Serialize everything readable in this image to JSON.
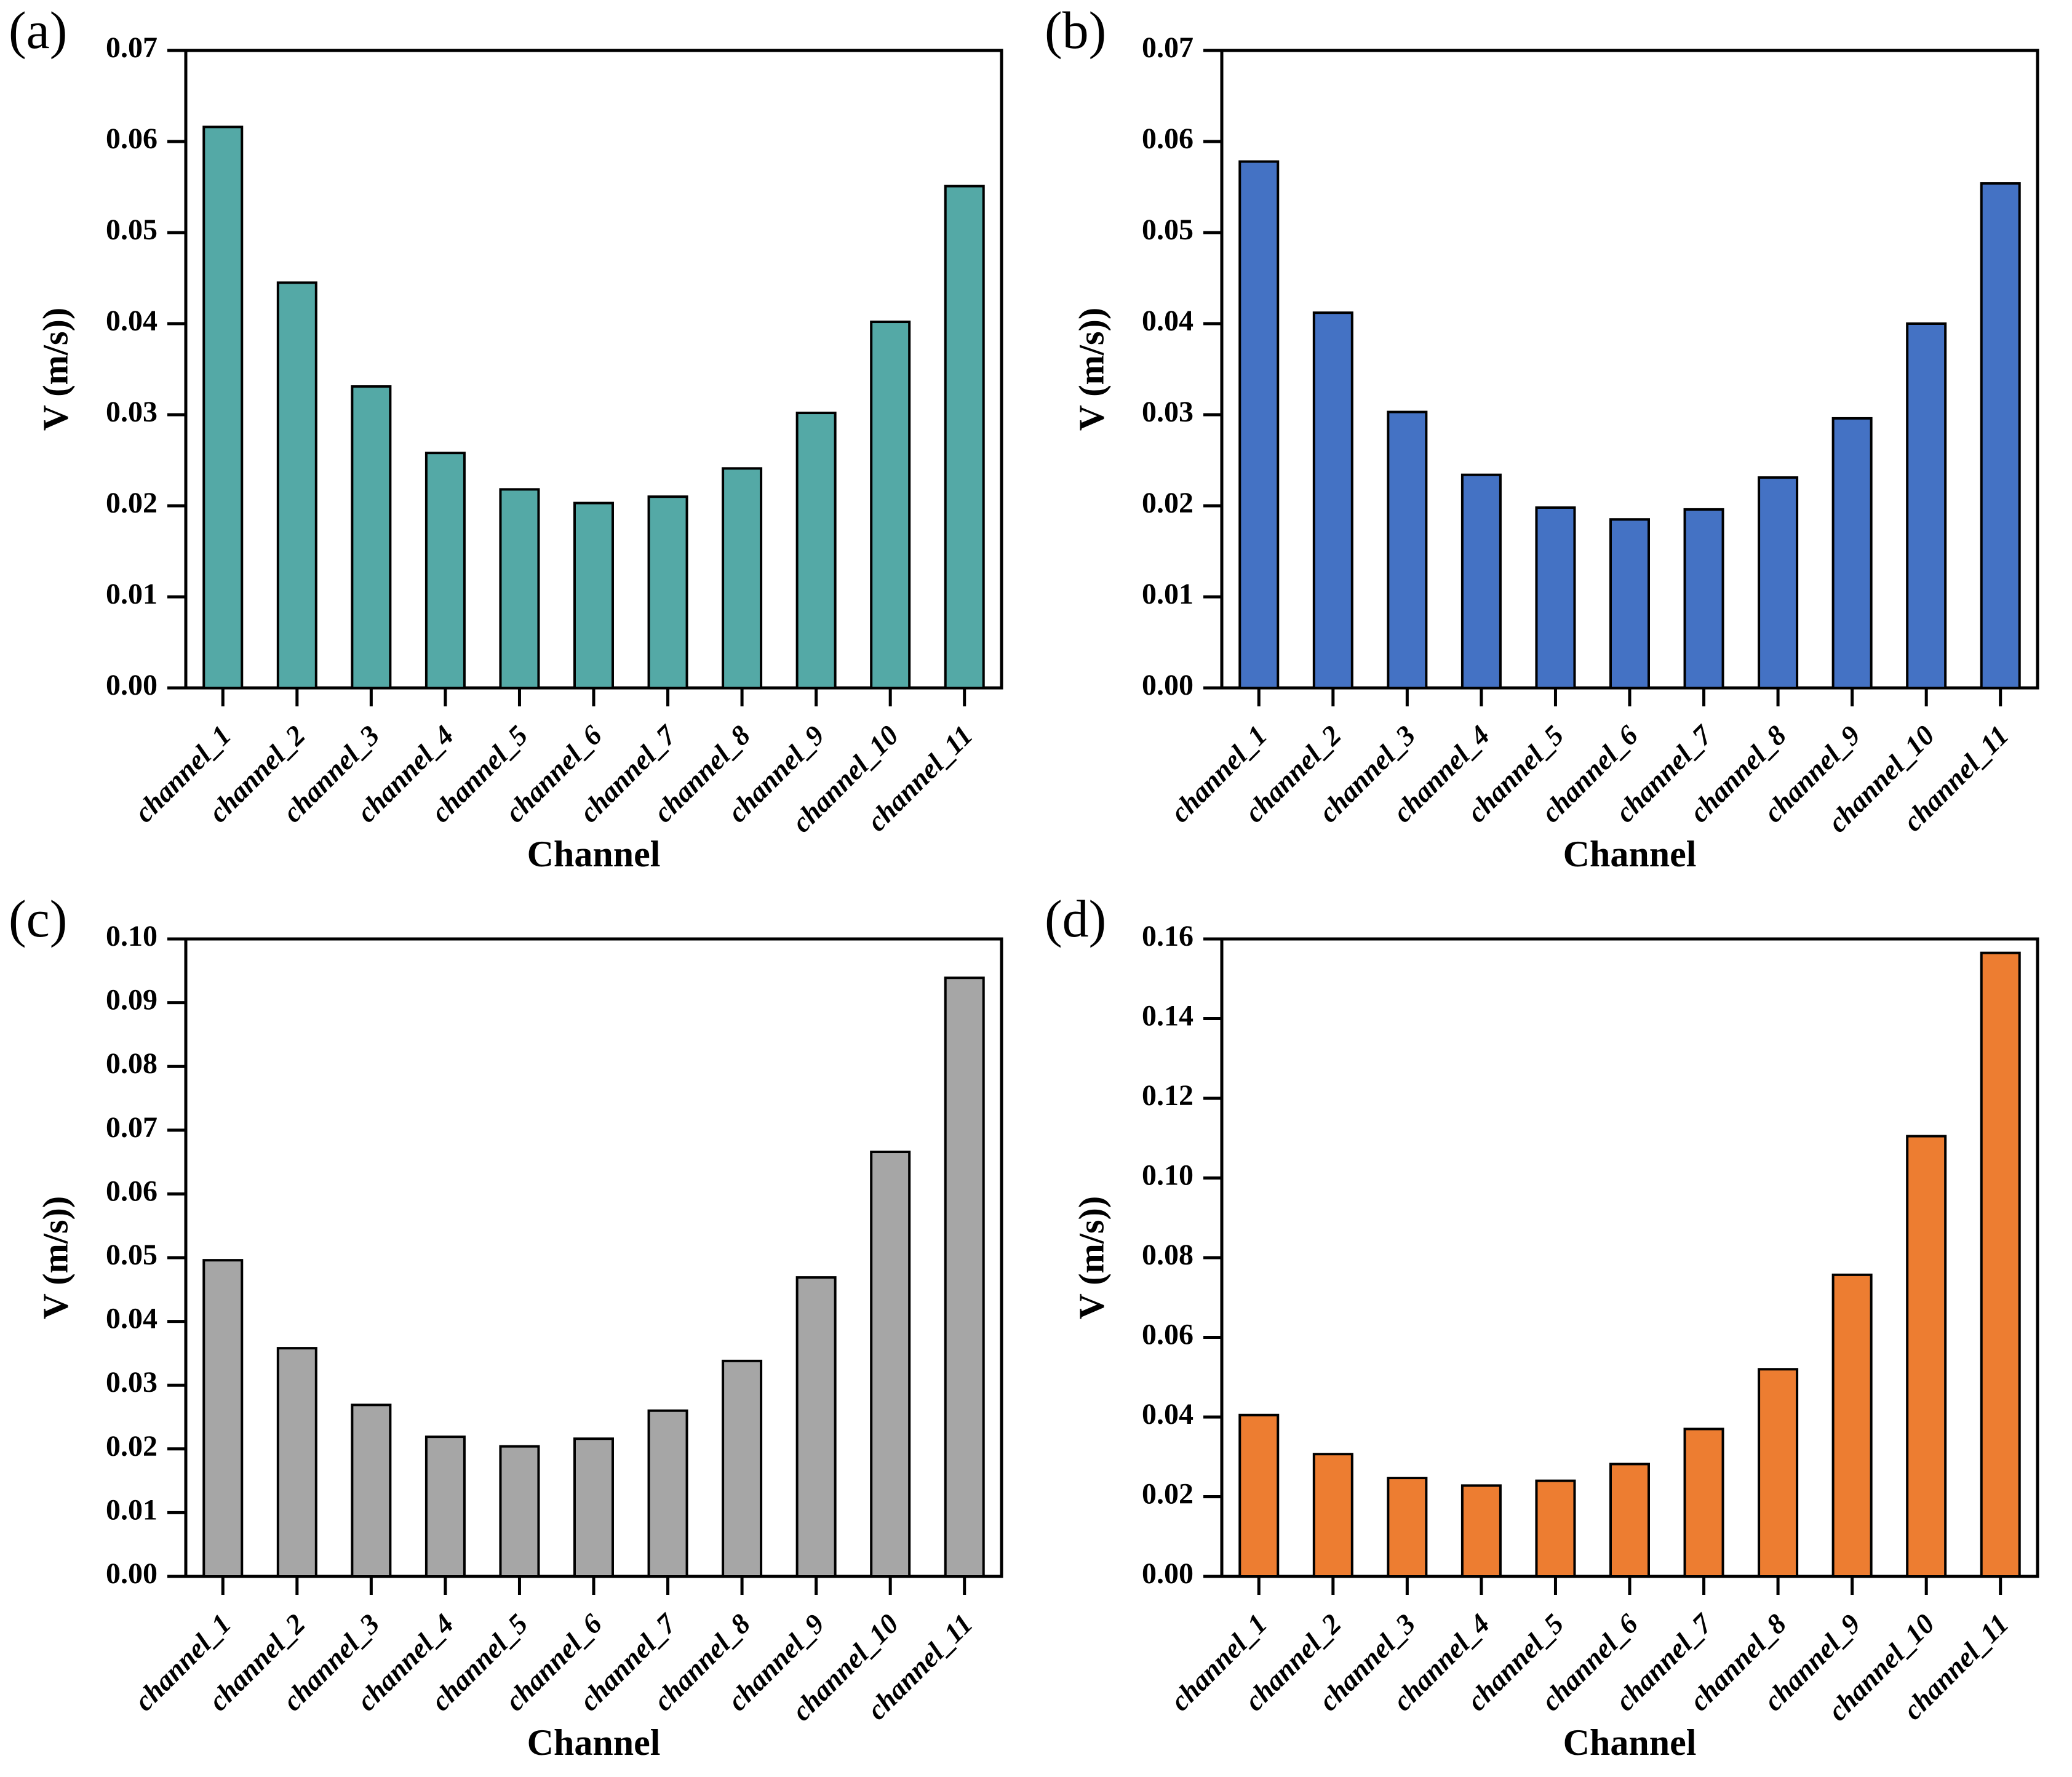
{
  "figure": {
    "background_color": "#ffffff",
    "layout": "2x2-grid-of-bar-charts"
  },
  "chart_data": [
    {
      "type": "bar",
      "panel_label": "(a)",
      "title": "",
      "xlabel": "Channel",
      "ylabel": "V (m/s))",
      "categories": [
        "channel_1",
        "channel_2",
        "channel_3",
        "channel_4",
        "channel_5",
        "channel_6",
        "channel_7",
        "channel_8",
        "channel_9",
        "channel_10",
        "channel_11"
      ],
      "values": [
        0.0616,
        0.0445,
        0.0331,
        0.0258,
        0.0218,
        0.0203,
        0.021,
        0.0241,
        0.0302,
        0.0402,
        0.0551
      ],
      "ylim": [
        0,
        0.07
      ],
      "yticks": [
        0,
        0.01,
        0.02,
        0.03,
        0.04,
        0.05,
        0.06,
        0.07
      ],
      "ytick_labels": [
        "0.00",
        "0.01",
        "0.02",
        "0.03",
        "0.04",
        "0.05",
        "0.06",
        "0.07"
      ],
      "bar_color": "#54A9A6",
      "bar_edge_color": "#000000",
      "grid": false,
      "legend_position": "none",
      "xtick_rotation_deg": 45
    },
    {
      "type": "bar",
      "panel_label": "(b)",
      "title": "",
      "xlabel": "Channel",
      "ylabel": "V (m/s))",
      "categories": [
        "channel_1",
        "channel_2",
        "channel_3",
        "channel_4",
        "channel_5",
        "channel_6",
        "channel_7",
        "channel_8",
        "channel_9",
        "channel_10",
        "channel_11"
      ],
      "values": [
        0.0578,
        0.0412,
        0.0303,
        0.0234,
        0.0198,
        0.0185,
        0.0196,
        0.0231,
        0.0296,
        0.04,
        0.0554
      ],
      "ylim": [
        0,
        0.07
      ],
      "yticks": [
        0,
        0.01,
        0.02,
        0.03,
        0.04,
        0.05,
        0.06,
        0.07
      ],
      "ytick_labels": [
        "0.00",
        "0.01",
        "0.02",
        "0.03",
        "0.04",
        "0.05",
        "0.06",
        "0.07"
      ],
      "bar_color": "#4472C4",
      "bar_edge_color": "#000000",
      "grid": false,
      "legend_position": "none",
      "xtick_rotation_deg": 45
    },
    {
      "type": "bar",
      "panel_label": "(c)",
      "title": "",
      "xlabel": "Channel",
      "ylabel": "V (m/s))",
      "categories": [
        "channel_1",
        "channel_2",
        "channel_3",
        "channel_4",
        "channel_5",
        "channel_6",
        "channel_7",
        "channel_8",
        "channel_9",
        "channel_10",
        "channel_11"
      ],
      "values": [
        0.0496,
        0.0358,
        0.0269,
        0.0219,
        0.0204,
        0.0216,
        0.026,
        0.0338,
        0.0469,
        0.0666,
        0.0939
      ],
      "ylim": [
        0,
        0.1
      ],
      "yticks": [
        0,
        0.01,
        0.02,
        0.03,
        0.04,
        0.05,
        0.06,
        0.07,
        0.08,
        0.09,
        0.1
      ],
      "ytick_labels": [
        "0.00",
        "0.01",
        "0.02",
        "0.03",
        "0.04",
        "0.05",
        "0.06",
        "0.07",
        "0.08",
        "0.09",
        "0.10"
      ],
      "bar_color": "#A6A6A6",
      "bar_edge_color": "#000000",
      "grid": false,
      "legend_position": "none",
      "xtick_rotation_deg": 45
    },
    {
      "type": "bar",
      "panel_label": "(d)",
      "title": "",
      "xlabel": "Channel",
      "ylabel": "V (m/s))",
      "categories": [
        "channel_1",
        "channel_2",
        "channel_3",
        "channel_4",
        "channel_5",
        "channel_6",
        "channel_7",
        "channel_8",
        "channel_9",
        "channel_10",
        "channel_11"
      ],
      "values": [
        0.0405,
        0.0307,
        0.0247,
        0.0228,
        0.024,
        0.0282,
        0.037,
        0.052,
        0.0757,
        0.1105,
        0.1565
      ],
      "ylim": [
        0,
        0.16
      ],
      "yticks": [
        0,
        0.02,
        0.04,
        0.06,
        0.08,
        0.1,
        0.12,
        0.14,
        0.16
      ],
      "ytick_labels": [
        "0.00",
        "0.02",
        "0.04",
        "0.06",
        "0.08",
        "0.10",
        "0.12",
        "0.14",
        "0.16"
      ],
      "bar_color": "#ED7D31",
      "bar_edge_color": "#000000",
      "grid": false,
      "legend_position": "none",
      "xtick_rotation_deg": 45
    }
  ]
}
